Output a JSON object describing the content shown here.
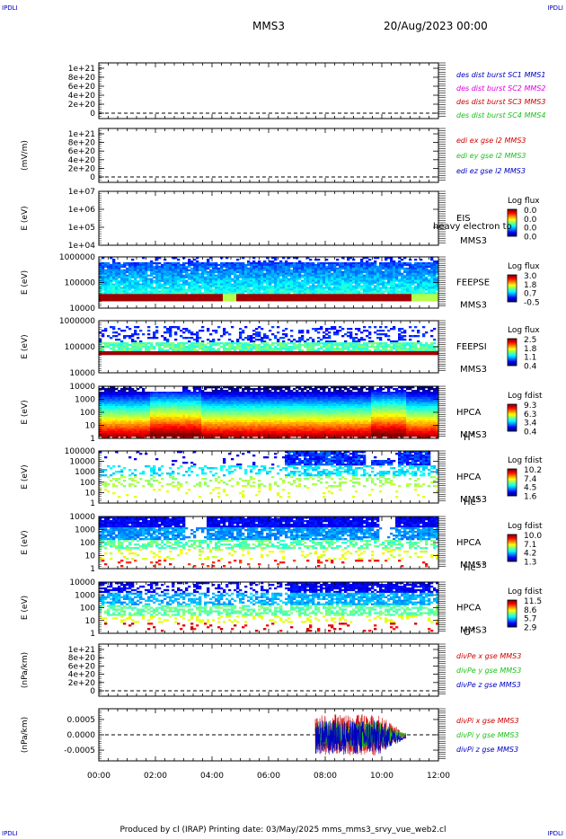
{
  "header": {
    "corner_left_top": "IPDLI",
    "corner_right_top": "IPDLI",
    "corner_left_bottom": "IPDLI",
    "corner_right_bottom": "IPDLI",
    "spacecraft": "MMS3",
    "datetime": "20/Aug/2023 00:00"
  },
  "footer": {
    "text": "Produced by cl (IRAP)   Printing date: 03/May/2025   mms_mms3_srvy_vue_web2.cl"
  },
  "colors": {
    "red": "#d00000",
    "magenta": "#e000e0",
    "green": "#20c020",
    "blue": "#0000c0",
    "dashed": "#000000"
  },
  "chart_data": {
    "x_ticks": [
      "00:00",
      "02:00",
      "04:00",
      "06:00",
      "08:00",
      "10:00",
      "12:00"
    ],
    "x_range_hours": [
      0,
      12
    ],
    "panels": [
      {
        "type": "line",
        "ylabel": "",
        "yticks": [
          "1e+21",
          "8e+20",
          "6e+20",
          "4e+20",
          "2e+20",
          "0"
        ],
        "ylim": [
          0,
          1.1e+21
        ],
        "legend": [
          {
            "label": "des dist burst SC1 MMS1",
            "color": "#0000c0"
          },
          {
            "label": "des dist burst SC2 MMS2",
            "color": "#e000e0"
          },
          {
            "label": "des dist burst SC3 MMS3",
            "color": "#d00000"
          },
          {
            "label": "des dist burst SC4 MMS4",
            "color": "#20c020"
          }
        ]
      },
      {
        "type": "line",
        "ylabel": "(mV/m)",
        "yticks": [
          "1e+21",
          "8e+20",
          "6e+20",
          "4e+20",
          "2e+20",
          "0"
        ],
        "ylim": [
          0,
          1.1e+21
        ],
        "legend": [
          {
            "label": "edi ex gse l2 MMS3",
            "color": "#d00000"
          },
          {
            "label": "edi ey gse l2 MMS3",
            "color": "#20c020"
          },
          {
            "label": "edi ez gse l2 MMS3",
            "color": "#0000c0"
          }
        ]
      },
      {
        "type": "heatmap",
        "ylabel": "E (eV)",
        "yticks": [
          "1e+07",
          "1e+06",
          "1e+05",
          "1e+04"
        ],
        "ylim_log": [
          4,
          7
        ],
        "side": [
          "EIS",
          "MMS3"
        ],
        "overlay": "heavy electron to",
        "cbar_title": "Log flux",
        "cbar_ticks": [
          "0.0",
          "0.0",
          "0.0",
          "0.0"
        ],
        "profile": "none"
      },
      {
        "type": "heatmap",
        "ylabel": "E (eV)",
        "yticks": [
          "1000000",
          "100000",
          "10000"
        ],
        "ylim_log": [
          4,
          6
        ],
        "side": [
          "FEEPSE",
          "MMS3"
        ],
        "cbar_title": "Log flux",
        "cbar_ticks": [
          "3.0",
          "1.8",
          "0.7",
          "-0.5"
        ],
        "profile": "feepse"
      },
      {
        "type": "heatmap",
        "ylabel": "E (eV)",
        "yticks": [
          "1000000",
          "100000",
          "10000"
        ],
        "ylim_log": [
          4,
          6
        ],
        "side": [
          "FEEPSI",
          "MMS3"
        ],
        "cbar_title": "Log flux",
        "cbar_ticks": [
          "2.5",
          "1.8",
          "1.1",
          "0.4"
        ],
        "profile": "feepsi"
      },
      {
        "type": "heatmap",
        "ylabel": "E (eV)",
        "yticks": [
          "10000",
          "1000",
          "100",
          "10",
          "1"
        ],
        "ylim_log": [
          0,
          4
        ],
        "side": [
          "HPCA",
          "MMS3"
        ],
        "species": "H",
        "species_sup": "+",
        "cbar_title": "Log fdist",
        "cbar_ticks": [
          "9.3",
          "6.3",
          "3.4",
          "0.4"
        ],
        "profile": "hplus"
      },
      {
        "type": "heatmap",
        "ylabel": "E (eV)",
        "yticks": [
          "100000",
          "10000",
          "1000",
          "100",
          "10",
          "1"
        ],
        "ylim_log": [
          0,
          5
        ],
        "side": [
          "HPCA",
          "MMS3"
        ],
        "species": "He",
        "species_sup": "+",
        "cbar_title": "Log fdist",
        "cbar_ticks": [
          "10.2",
          "7.4",
          "4.5",
          "1.6"
        ],
        "profile": "heplus"
      },
      {
        "type": "heatmap",
        "ylabel": "E (eV)",
        "yticks": [
          "10000",
          "1000",
          "100",
          "10",
          "1"
        ],
        "ylim_log": [
          0,
          4
        ],
        "side": [
          "HPCA",
          "MMS3"
        ],
        "species": "He",
        "species_sup": "++",
        "cbar_title": "Log fdist",
        "cbar_ticks": [
          "10.0",
          "7.1",
          "4.2",
          "1.3"
        ],
        "profile": "hepp"
      },
      {
        "type": "heatmap",
        "ylabel": "E (eV)",
        "yticks": [
          "10000",
          "1000",
          "100",
          "10",
          "1"
        ],
        "ylim_log": [
          0,
          4
        ],
        "side": [
          "HPCA",
          "MMS3"
        ],
        "species": "O",
        "species_sup": "+",
        "cbar_title": "Log fdist",
        "cbar_ticks": [
          "11.5",
          "8.6",
          "5.7",
          "2.9"
        ],
        "profile": "oplus"
      },
      {
        "type": "line",
        "ylabel": "(nPa/km)",
        "yticks": [
          "1e+21",
          "8e+20",
          "6e+20",
          "4e+20",
          "2e+20",
          "0"
        ],
        "ylim": [
          0,
          1.1e+21
        ],
        "legend": [
          {
            "label": "divPe x gse MMS3",
            "color": "#d00000"
          },
          {
            "label": "divPe y gse MMS3",
            "color": "#20c020"
          },
          {
            "label": "divPe z gse MMS3",
            "color": "#0000c0"
          }
        ]
      },
      {
        "type": "line",
        "ylabel": "(nPa/km)",
        "yticks": [
          "0.0005",
          "0.0000",
          "-0.0005"
        ],
        "ylim": [
          -0.00085,
          0.00085
        ],
        "noise_hours": [
          7.65,
          10.85
        ],
        "legend": [
          {
            "label": "divPi x gse MMS3",
            "color": "#d00000"
          },
          {
            "label": "divPi y gse MMS3",
            "color": "#20c020"
          },
          {
            "label": "divPi z gse MMS3",
            "color": "#0000c0"
          }
        ]
      }
    ]
  }
}
